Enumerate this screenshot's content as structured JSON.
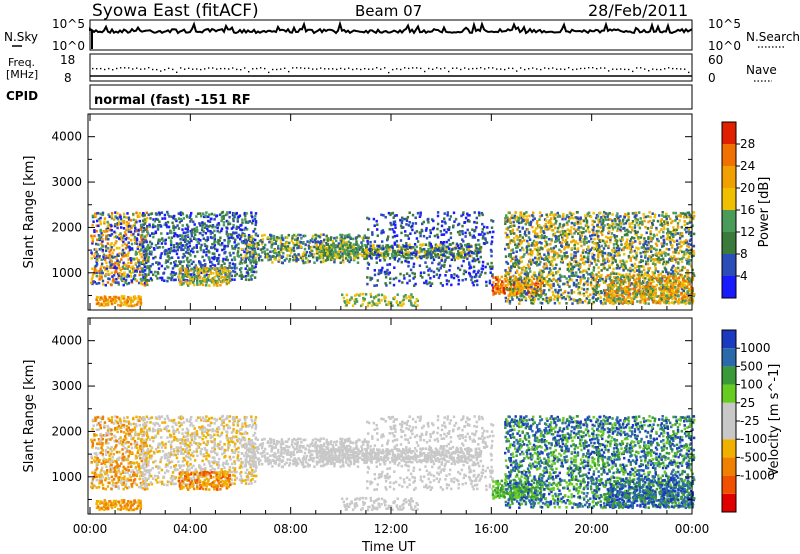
{
  "header": {
    "title": "Syowa East (fitACF)",
    "beam": "Beam 07",
    "date": "28/Feb/2011"
  },
  "colors": {
    "power": [
      "#1a1aff",
      "#2a4db8",
      "#3a7a3a",
      "#4a9a5a",
      "#f0c000",
      "#f0a000",
      "#f07000",
      "#e02000"
    ],
    "velocity": [
      "#e00000",
      "#f05000",
      "#f08000",
      "#f0b000",
      "#c8c8c8",
      "#c8c8c8",
      "#66cc22",
      "#3a9a3a",
      "#2a6aaa",
      "#1a3abf"
    ]
  },
  "panels": {
    "nsky": {
      "left_label": "N.Sky",
      "right_label": "N.Search",
      "left_ticks": [
        "10^5",
        "10^0"
      ],
      "right_ticks": [
        "10^5",
        "10^0"
      ]
    },
    "freq": {
      "left_label_1": "Freq.",
      "left_label_2": "[MHz]",
      "right_label": "Nave",
      "left_ticks": [
        "18",
        "8"
      ],
      "right_ticks": [
        "60",
        "0"
      ]
    },
    "cpid": {
      "label": "CPID",
      "text": "normal (fast) -151 RF"
    }
  },
  "chart_data": [
    {
      "type": "heatmap",
      "name": "power",
      "ylabel": "Slant Range [km]",
      "ylim": [
        180,
        4500
      ],
      "yticks": [
        1000,
        2000,
        3000,
        4000
      ],
      "xlim": [
        0,
        24
      ],
      "colorbar_label": "Power [dB]",
      "colorbar_ticks": [
        "4",
        "8",
        "12",
        "16",
        "20",
        "24",
        "28"
      ],
      "colorbar_range": [
        0,
        30
      ]
    },
    {
      "type": "heatmap",
      "name": "velocity",
      "ylabel": "Slant Range [km]",
      "ylim": [
        180,
        4500
      ],
      "yticks": [
        1000,
        2000,
        3000,
        4000
      ],
      "xlim": [
        0,
        24
      ],
      "colorbar_label": "Velocity [m s^-1]",
      "colorbar_ticks": [
        "1000",
        "500",
        "100",
        "25",
        "-25",
        "-100",
        "-500",
        "-1000"
      ]
    }
  ],
  "xaxis": {
    "label": "Time UT",
    "ticks": [
      "00:00",
      "04:00",
      "08:00",
      "12:00",
      "16:00",
      "20:00",
      "00:00"
    ],
    "tick_values": [
      0,
      4,
      8,
      12,
      16,
      20,
      24
    ]
  }
}
